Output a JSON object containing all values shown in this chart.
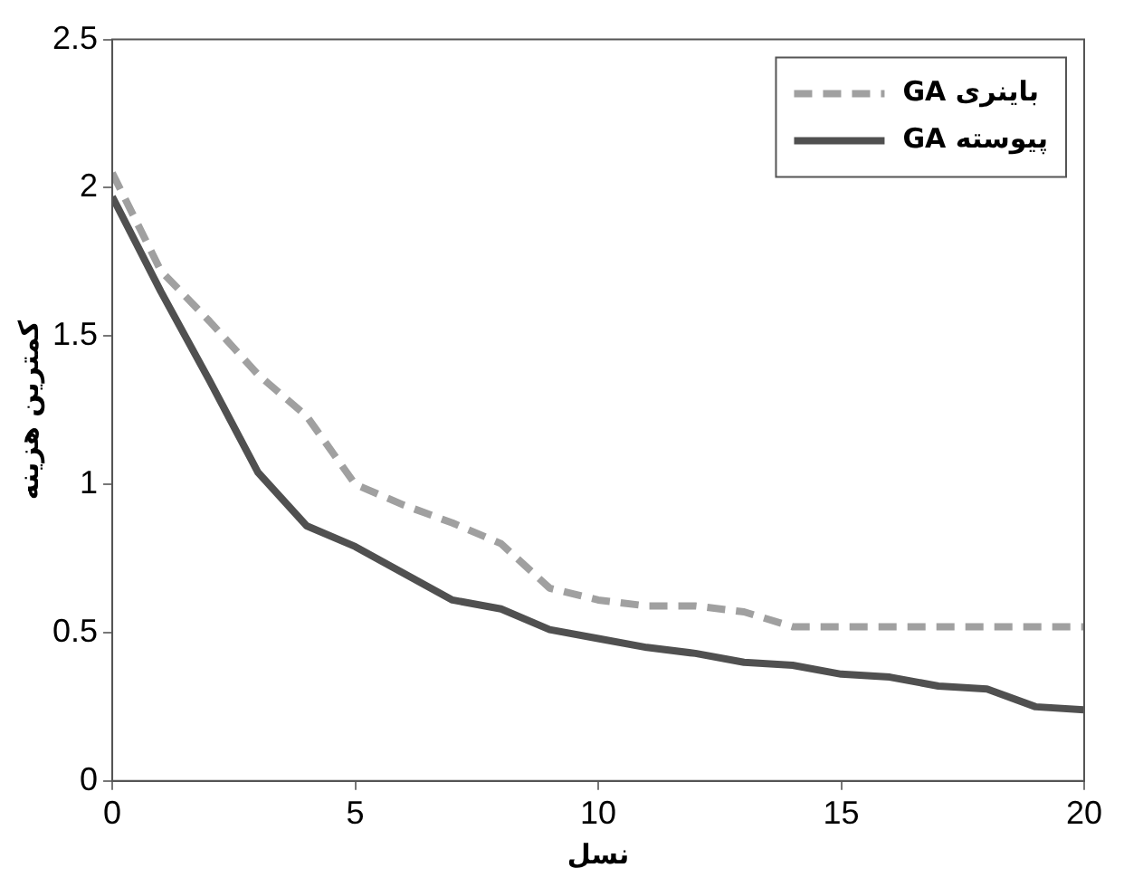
{
  "chart_data": {
    "type": "line",
    "xlabel": "نسل",
    "ylabel": "کمترین هزینه",
    "x": [
      0,
      1,
      2,
      3,
      4,
      5,
      6,
      7,
      8,
      9,
      10,
      11,
      12,
      13,
      14,
      15,
      16,
      17,
      18,
      19,
      20
    ],
    "series": [
      {
        "name": "GA باینری",
        "color": "#a0a0a0",
        "line_style": "dashed",
        "values": [
          2.05,
          1.72,
          1.55,
          1.37,
          1.23,
          1.0,
          0.93,
          0.87,
          0.8,
          0.65,
          0.61,
          0.59,
          0.59,
          0.57,
          0.52,
          0.52,
          0.52,
          0.52,
          0.52,
          0.52,
          0.52
        ]
      },
      {
        "name": "GA پیوسته",
        "color": "#505050",
        "line_style": "solid",
        "values": [
          1.97,
          1.65,
          1.35,
          1.04,
          0.86,
          0.79,
          0.7,
          0.61,
          0.58,
          0.51,
          0.48,
          0.45,
          0.43,
          0.4,
          0.39,
          0.36,
          0.35,
          0.32,
          0.31,
          0.25,
          0.24
        ]
      }
    ],
    "xlim": [
      0,
      20
    ],
    "xticks": [
      0,
      5,
      10,
      15,
      20
    ],
    "ylim": [
      0,
      2.5
    ],
    "yticks": [
      0,
      0.5,
      1,
      1.5,
      2,
      2.5
    ],
    "grid": false,
    "legend": "top right",
    "marker": "none"
  }
}
